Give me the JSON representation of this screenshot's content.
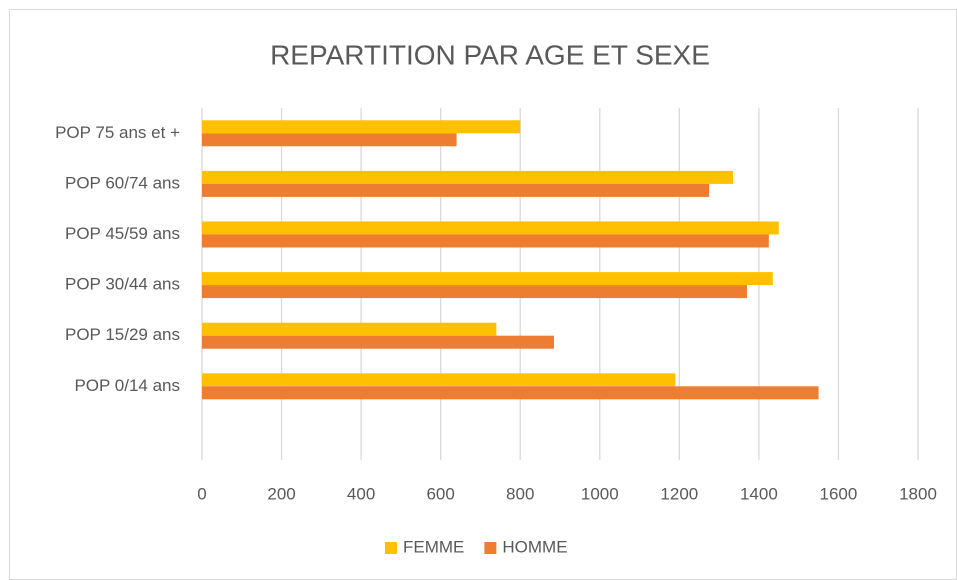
{
  "chart_data": {
    "type": "bar",
    "orientation": "horizontal",
    "title": "REPARTITION PAR AGE ET SEXE",
    "categories": [
      "POP 75 ans et +",
      "POP 60/74 ans",
      "POP 45/59 ans",
      "POP 30/44 ans",
      "POP 15/29 ans",
      "POP 0/14 ans"
    ],
    "series": [
      {
        "name": "FEMME",
        "color": "#FFC000",
        "values": [
          800,
          1335,
          1450,
          1435,
          740,
          1190
        ]
      },
      {
        "name": "HOMME",
        "color": "#ED7D31",
        "values": [
          640,
          1275,
          1425,
          1370,
          885,
          1550
        ]
      }
    ],
    "xlim": [
      0,
      1800
    ],
    "xticks": [
      0,
      200,
      400,
      600,
      800,
      1000,
      1200,
      1400,
      1600,
      1800
    ],
    "grid": true,
    "legend": "bottom"
  }
}
